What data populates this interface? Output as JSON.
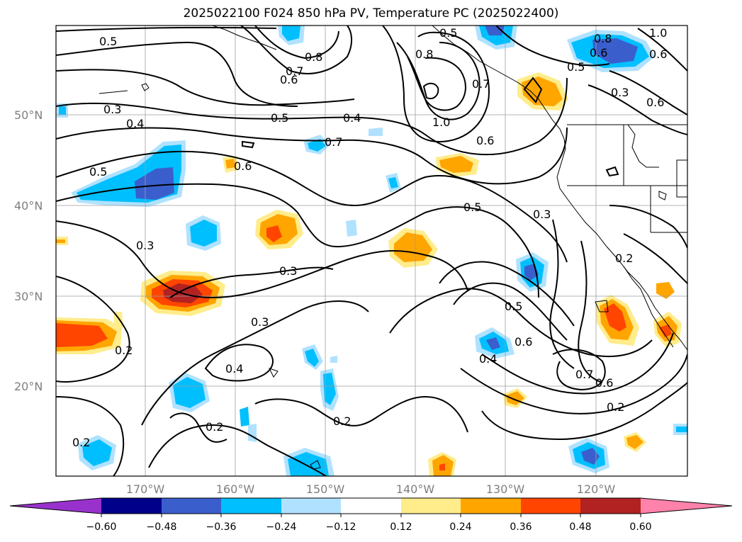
{
  "title": "2025022100 F024 850 hPa PV, Temperature PC (2025022400)",
  "latitude_labels": [
    "50°N",
    "40°N",
    "30°N",
    "20°N"
  ],
  "longitude_labels": [
    "170°W",
    "160°W",
    "150°W",
    "140°W",
    "130°W",
    "120°W"
  ],
  "contour_labels": [
    "0.5",
    "0.8",
    "0.7",
    "0.6",
    "0.3",
    "0.4",
    "0.5",
    "0.4",
    "0.7",
    "0.8",
    "1.0",
    "0.6",
    "0.8",
    "0.6",
    "0.5",
    "1.0",
    "0.3",
    "0.6",
    "0.5",
    "0.6",
    "0.5",
    "0.6",
    "0.5",
    "0.3",
    "0.3",
    "0.3",
    "0.3",
    "0.5",
    "0.6",
    "0.7",
    "0.6",
    "0.4",
    "0.4",
    "0.2",
    "0.2",
    "0.2",
    "0.2",
    "0.2",
    "0.2",
    "0.7"
  ],
  "colorbar": {
    "colors": [
      "#9932cc",
      "#00008b",
      "#3a5fcd",
      "#00bfff",
      "#b0e2ff",
      "#ffffff",
      "#ffec8b",
      "#ffa500",
      "#ff4500",
      "#b22222",
      "#ff82ab"
    ],
    "ticks": [
      "−0.60",
      "−0.48",
      "−0.36",
      "−0.24",
      "−0.12",
      "0.12",
      "0.24",
      "0.36",
      "0.48",
      "0.60"
    ]
  }
}
